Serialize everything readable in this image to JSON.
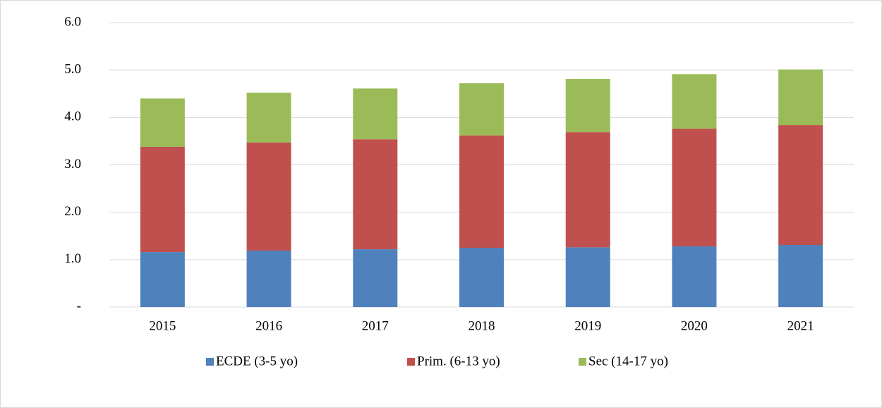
{
  "chart_data": {
    "type": "bar",
    "stacked": true,
    "categories": [
      "2015",
      "2016",
      "2017",
      "2018",
      "2019",
      "2020",
      "2021"
    ],
    "series": [
      {
        "name": "ECDE (3-5 yo)",
        "color": "#4f81bd",
        "values": [
          1.16,
          1.19,
          1.22,
          1.25,
          1.26,
          1.28,
          1.31
        ]
      },
      {
        "name": "Prim. (6-13 yo)",
        "color": "#c0504d",
        "values": [
          2.22,
          2.28,
          2.32,
          2.37,
          2.43,
          2.48,
          2.53
        ]
      },
      {
        "name": "Sec (14-17 yo)",
        "color": "#9bbb59",
        "values": [
          1.02,
          1.05,
          1.07,
          1.1,
          1.12,
          1.15,
          1.17
        ]
      }
    ],
    "ylim": [
      0,
      6
    ],
    "yticks": [
      {
        "value": 0,
        "label": "-"
      },
      {
        "value": 1,
        "label": "1.0"
      },
      {
        "value": 2,
        "label": "2.0"
      },
      {
        "value": 3,
        "label": "3.0"
      },
      {
        "value": 4,
        "label": "4.0"
      },
      {
        "value": 5,
        "label": "5.0"
      },
      {
        "value": 6,
        "label": "6.0"
      }
    ],
    "grid": true,
    "legend": "bottom"
  }
}
